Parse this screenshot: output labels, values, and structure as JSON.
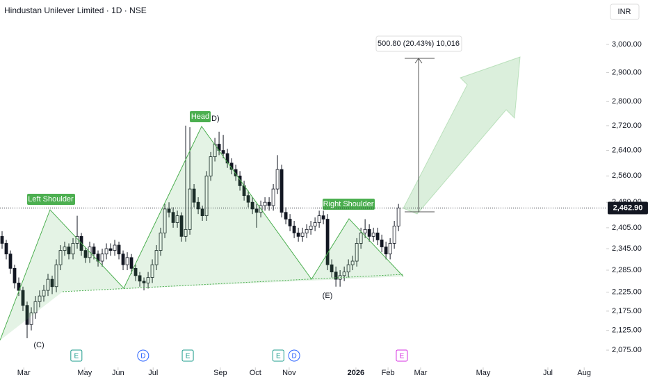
{
  "chart_data": {
    "type": "candlestick",
    "title": "Hindustan Unilever Limited · 1D · NSE",
    "currency": "INR",
    "log_scale": true,
    "ylim": [
      2039,
      3165
    ],
    "xlim": [
      -0.5,
      144.8
    ],
    "yticks": [
      {
        "value": 3000,
        "label": "3,000.00"
      },
      {
        "value": 2900,
        "label": "2,900.00"
      },
      {
        "value": 2800,
        "label": "2,800.00"
      },
      {
        "value": 2720,
        "label": "2,720.00"
      },
      {
        "value": 2640,
        "label": "2,640.00"
      },
      {
        "value": 2560,
        "label": "2,560.00"
      },
      {
        "value": 2480,
        "label": "2,480.00"
      },
      {
        "value": 2405,
        "label": "2,405.00"
      },
      {
        "value": 2345,
        "label": "2,345.00"
      },
      {
        "value": 2285,
        "label": "2,285.00"
      },
      {
        "value": 2225,
        "label": "2,225.00"
      },
      {
        "value": 2175,
        "label": "2,175.00"
      },
      {
        "value": 2125,
        "label": "2,125.00"
      },
      {
        "value": 2075,
        "label": "2,075.00"
      }
    ],
    "xticks": [
      {
        "value": 5.2,
        "label": "Mar"
      },
      {
        "value": 19.8,
        "label": "May"
      },
      {
        "value": 27.8,
        "label": "Jun"
      },
      {
        "value": 36.2,
        "label": "Jul"
      },
      {
        "value": 52.3,
        "label": "Sep"
      },
      {
        "value": 60.7,
        "label": "Oct"
      },
      {
        "value": 68.8,
        "label": "Nov"
      },
      {
        "value": 84.8,
        "label": "2026"
      },
      {
        "value": 92.5,
        "label": "Feb"
      },
      {
        "value": 100.3,
        "label": "Mar"
      },
      {
        "value": 115.3,
        "label": "May"
      },
      {
        "value": 130.8,
        "label": "Jul"
      },
      {
        "value": 139.5,
        "label": "Aug"
      }
    ],
    "up_color": "#ffffff",
    "down_color": "#131722",
    "last_price": {
      "value": 2462.9,
      "label": "2,462.90"
    },
    "ohlc": [
      [
        2380,
        2395,
        2345,
        2360
      ],
      [
        2360,
        2370,
        2315,
        2330
      ],
      [
        2330,
        2340,
        2275,
        2290
      ],
      [
        2290,
        2300,
        2235,
        2250
      ],
      [
        2250,
        2265,
        2215,
        2230
      ],
      [
        2230,
        2240,
        2175,
        2190
      ],
      [
        2190,
        2200,
        2105,
        2140
      ],
      [
        2140,
        2185,
        2125,
        2170
      ],
      [
        2170,
        2215,
        2155,
        2200
      ],
      [
        2200,
        2230,
        2185,
        2215
      ],
      [
        2215,
        2245,
        2200,
        2230
      ],
      [
        2230,
        2275,
        2215,
        2260
      ],
      [
        2260,
        2270,
        2220,
        2240
      ],
      [
        2240,
        2315,
        2225,
        2300
      ],
      [
        2300,
        2355,
        2285,
        2340
      ],
      [
        2340,
        2365,
        2325,
        2350
      ],
      [
        2350,
        2360,
        2315,
        2330
      ],
      [
        2330,
        2375,
        2315,
        2360
      ],
      [
        2360,
        2440,
        2345,
        2380
      ],
      [
        2380,
        2390,
        2325,
        2340
      ],
      [
        2340,
        2350,
        2305,
        2320
      ],
      [
        2320,
        2365,
        2305,
        2350
      ],
      [
        2350,
        2360,
        2315,
        2330
      ],
      [
        2330,
        2340,
        2295,
        2310
      ],
      [
        2310,
        2345,
        2295,
        2330
      ],
      [
        2330,
        2360,
        2315,
        2345
      ],
      [
        2345,
        2360,
        2325,
        2340
      ],
      [
        2340,
        2370,
        2325,
        2355
      ],
      [
        2355,
        2365,
        2315,
        2330
      ],
      [
        2330,
        2340,
        2285,
        2300
      ],
      [
        2300,
        2335,
        2285,
        2320
      ],
      [
        2320,
        2330,
        2275,
        2290
      ],
      [
        2290,
        2300,
        2255,
        2270
      ],
      [
        2270,
        2280,
        2240,
        2255
      ],
      [
        2255,
        2265,
        2230,
        2250
      ],
      [
        2250,
        2280,
        2235,
        2265
      ],
      [
        2265,
        2315,
        2250,
        2300
      ],
      [
        2300,
        2355,
        2285,
        2340
      ],
      [
        2340,
        2405,
        2325,
        2390
      ],
      [
        2390,
        2475,
        2375,
        2460
      ],
      [
        2460,
        2480,
        2435,
        2450
      ],
      [
        2450,
        2465,
        2405,
        2420
      ],
      [
        2420,
        2455,
        2405,
        2440
      ],
      [
        2440,
        2450,
        2365,
        2380
      ],
      [
        2380,
        2720,
        2365,
        2400
      ],
      [
        2400,
        2715,
        2385,
        2520
      ],
      [
        2520,
        2535,
        2465,
        2480
      ],
      [
        2480,
        2495,
        2445,
        2460
      ],
      [
        2460,
        2470,
        2425,
        2440
      ],
      [
        2440,
        2575,
        2425,
        2560
      ],
      [
        2560,
        2635,
        2545,
        2620
      ],
      [
        2620,
        2680,
        2605,
        2660
      ],
      [
        2660,
        2700,
        2625,
        2640
      ],
      [
        2640,
        2690,
        2615,
        2630
      ],
      [
        2630,
        2645,
        2585,
        2600
      ],
      [
        2600,
        2615,
        2565,
        2580
      ],
      [
        2580,
        2595,
        2545,
        2560
      ],
      [
        2560,
        2575,
        2515,
        2530
      ],
      [
        2530,
        2545,
        2485,
        2500
      ],
      [
        2500,
        2515,
        2465,
        2480
      ],
      [
        2480,
        2495,
        2445,
        2460
      ],
      [
        2460,
        2475,
        2405,
        2450
      ],
      [
        2450,
        2485,
        2435,
        2470
      ],
      [
        2470,
        2495,
        2455,
        2480
      ],
      [
        2480,
        2495,
        2455,
        2470
      ],
      [
        2470,
        2535,
        2455,
        2520
      ],
      [
        2520,
        2625,
        2505,
        2580
      ],
      [
        2580,
        2595,
        2435,
        2450
      ],
      [
        2450,
        2465,
        2415,
        2430
      ],
      [
        2430,
        2445,
        2395,
        2410
      ],
      [
        2410,
        2425,
        2375,
        2390
      ],
      [
        2390,
        2405,
        2365,
        2380
      ],
      [
        2380,
        2405,
        2365,
        2390
      ],
      [
        2390,
        2415,
        2375,
        2400
      ],
      [
        2400,
        2425,
        2385,
        2410
      ],
      [
        2410,
        2435,
        2395,
        2420
      ],
      [
        2420,
        2455,
        2405,
        2440
      ],
      [
        2440,
        2455,
        2415,
        2430
      ],
      [
        2430,
        2445,
        2285,
        2300
      ],
      [
        2300,
        2315,
        2265,
        2280
      ],
      [
        2280,
        2295,
        2240,
        2260
      ],
      [
        2260,
        2285,
        2240,
        2270
      ],
      [
        2270,
        2295,
        2255,
        2280
      ],
      [
        2280,
        2315,
        2265,
        2300
      ],
      [
        2300,
        2325,
        2285,
        2310
      ],
      [
        2310,
        2375,
        2295,
        2360
      ],
      [
        2360,
        2405,
        2345,
        2390
      ],
      [
        2390,
        2430,
        2375,
        2400
      ],
      [
        2400,
        2415,
        2365,
        2380
      ],
      [
        2380,
        2405,
        2365,
        2390
      ],
      [
        2390,
        2405,
        2355,
        2370
      ],
      [
        2370,
        2385,
        2335,
        2350
      ],
      [
        2350,
        2365,
        2315,
        2330
      ],
      [
        2330,
        2375,
        2315,
        2360
      ],
      [
        2360,
        2425,
        2345,
        2410
      ],
      [
        2410,
        2475,
        2395,
        2462.9
      ]
    ],
    "events": [
      {
        "x": 17.8,
        "label": "E",
        "color": "#1e9c8c"
      },
      {
        "x": 33.8,
        "label": "D",
        "color": "#2962ff"
      },
      {
        "x": 44.5,
        "label": "E",
        "color": "#1e9c8c"
      },
      {
        "x": 66.2,
        "label": "E",
        "color": "#1e9c8c"
      },
      {
        "x": 70,
        "label": "D",
        "color": "#2962ff"
      },
      {
        "x": 95.8,
        "label": "E",
        "color": "#d62ee0"
      }
    ],
    "annotations": {
      "left_shoulder": "Left Shoulder",
      "head": "Head",
      "right_shoulder": "Right Shoulder",
      "c": "(C)",
      "d": "D)",
      "e": "(E)",
      "measure": "500.80 (20.43%) 10,016"
    }
  }
}
